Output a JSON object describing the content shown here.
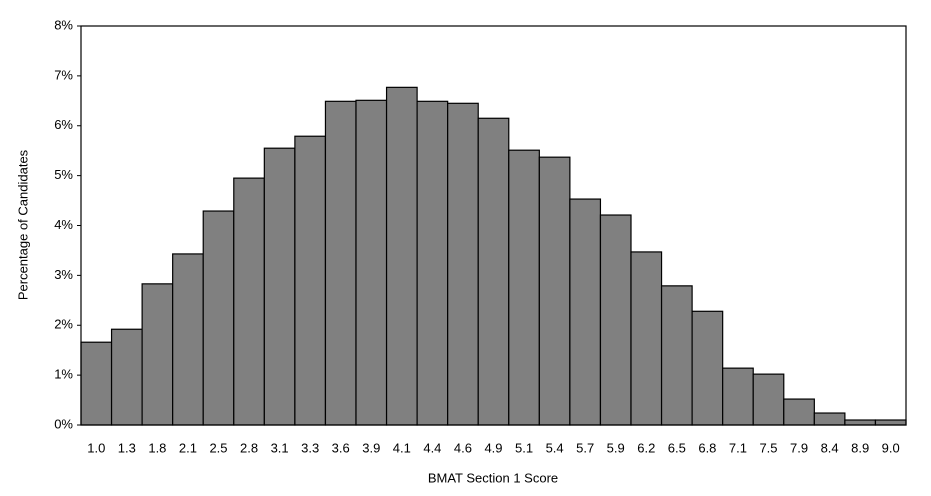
{
  "chart_data": {
    "type": "bar",
    "x_label": "BMAT Section 1 Score",
    "y_label": "Percentage of Candidates",
    "categories": [
      "1.0",
      "1.3",
      "1.8",
      "2.1",
      "2.5",
      "2.8",
      "3.1",
      "3.3",
      "3.6",
      "3.9",
      "4.1",
      "4.4",
      "4.6",
      "4.9",
      "5.1",
      "5.4",
      "5.7",
      "5.9",
      "6.2",
      "6.5",
      "6.8",
      "7.1",
      "7.5",
      "7.9",
      "8.4",
      "8.9",
      "9.0"
    ],
    "values": [
      1.66,
      1.92,
      2.83,
      3.43,
      4.29,
      4.95,
      5.55,
      5.79,
      6.49,
      6.51,
      6.77,
      6.49,
      6.45,
      6.15,
      5.51,
      5.37,
      4.53,
      4.21,
      3.47,
      2.79,
      2.28,
      1.14,
      1.02,
      0.52,
      0.24,
      0.1,
      0.1
    ],
    "color": "#808080",
    "ylim": [
      0,
      8
    ],
    "yticks": [
      {
        "value": 0,
        "label": "0%"
      },
      {
        "value": 1,
        "label": "1%"
      },
      {
        "value": 2,
        "label": "2%"
      },
      {
        "value": 3,
        "label": "3%"
      },
      {
        "value": 4,
        "label": "4%"
      },
      {
        "value": 5,
        "label": "5%"
      },
      {
        "value": 6,
        "label": "6%"
      },
      {
        "value": 7,
        "label": "7%"
      },
      {
        "value": 8,
        "label": "8%"
      }
    ],
    "grid": false
  }
}
